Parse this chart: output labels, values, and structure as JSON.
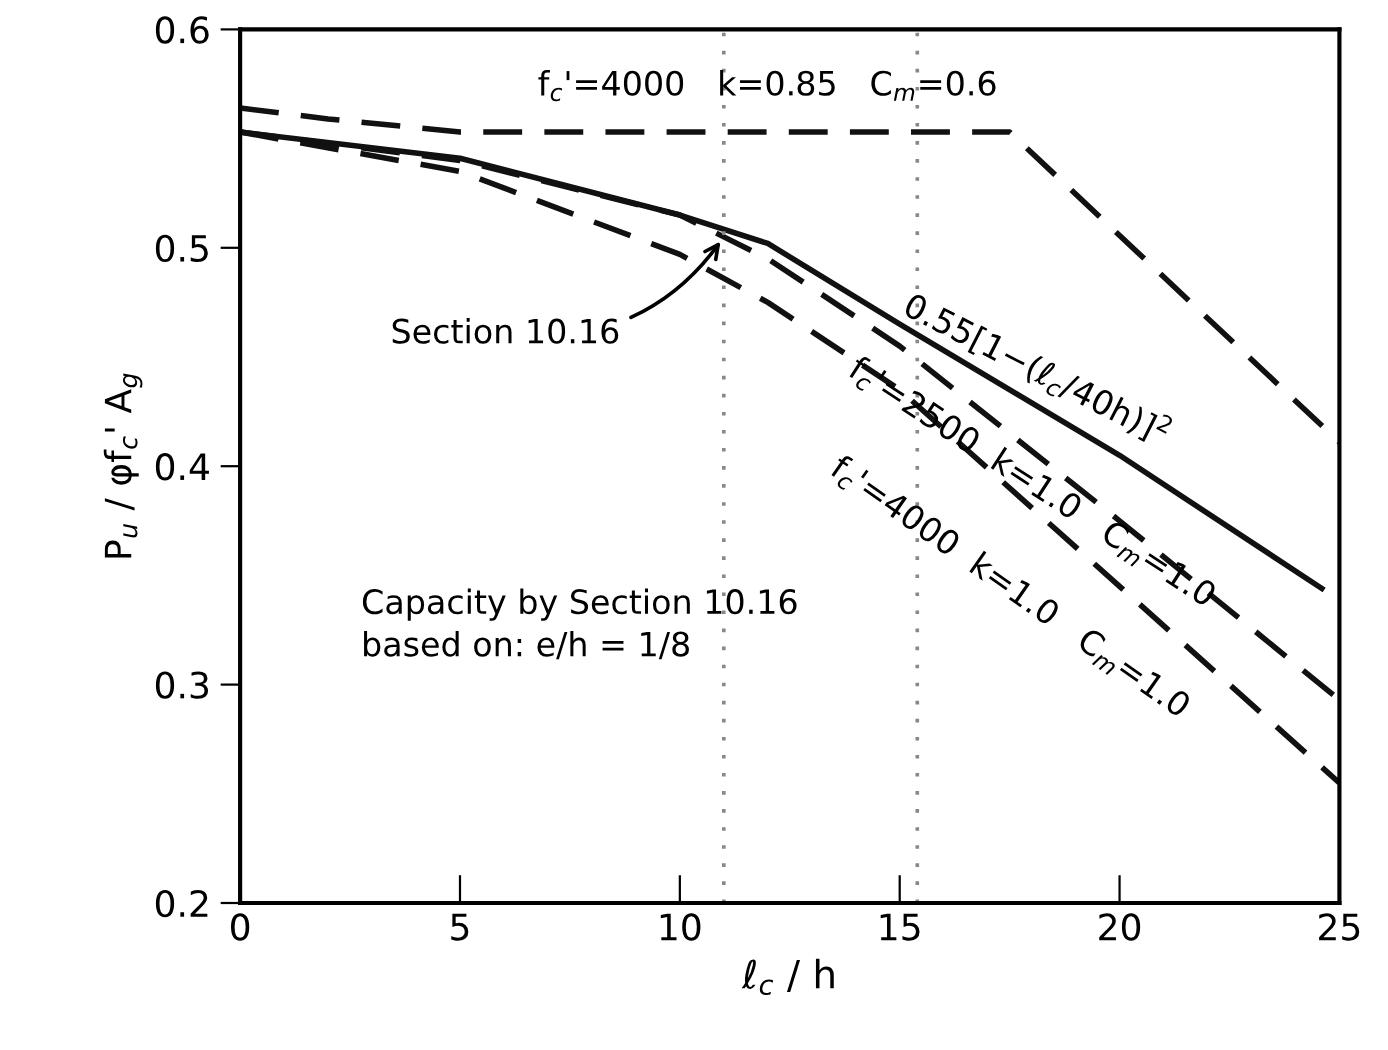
{
  "chart_data": {
    "type": "line",
    "xlabel": "ℓ$_{c}$ / h",
    "ylabel": "P$_{u}$ / φf$_{c}$' A$_{g}$",
    "x": [
      0,
      5,
      10,
      12,
      15,
      20,
      25
    ],
    "series": [
      {
        "color": "#111111",
        "line_style": "solid",
        "x": [
          0,
          5,
          10,
          12,
          15,
          20,
          24.6
        ],
        "values": [
          0.553,
          0.541,
          0.515,
          0.502,
          0.465,
          0.405,
          0.344
        ]
      },
      {
        "color": "#111111",
        "line_style": "dashed",
        "x": [
          0,
          2,
          5,
          17.5,
          25
        ],
        "values": [
          0.564,
          0.559,
          0.553,
          0.553,
          0.411
        ]
      },
      {
        "color": "#111111",
        "line_style": "dashed",
        "values": [
          0.553,
          0.54,
          0.515,
          0.495,
          0.455,
          0.375,
          0.293
        ]
      },
      {
        "color": "#111111",
        "line_style": "dashed",
        "values": [
          0.553,
          0.535,
          0.497,
          0.475,
          0.435,
          0.345,
          0.255
        ]
      }
    ],
    "xlim": [
      0,
      25
    ],
    "ylim": [
      0.2,
      0.6
    ],
    "xticks": [
      0,
      5,
      10,
      15,
      20,
      25
    ],
    "yticks": [
      0.2,
      0.3,
      0.4,
      0.5,
      0.6
    ],
    "grid": false,
    "legend": false,
    "marker": "none",
    "ref_lines": [
      {
        "axis": "x",
        "value": 11,
        "color": "#888888",
        "line_style": "dotted"
      },
      {
        "axis": "x",
        "value": 15.4,
        "color": "#888888",
        "line_style": "dotted"
      }
    ],
    "annotations": [
      "f$_{c}$'=4000   k=0.85   C$_{m}$=0.6",
      "0.55[1−(ℓ$_{c}$/40h)]$^{2}$",
      "f$_{c}$'=2500  k=1.0   C$_{m}$=1.0",
      "f$_{c}$'=4000  k=1.0   C$_{m}$=1.0",
      {
        "text": "Section 10.16",
        "x": 11,
        "y": 0.505
      },
      "Capacity by Section 10.16\nbased on: e/h = 1/8"
    ]
  }
}
